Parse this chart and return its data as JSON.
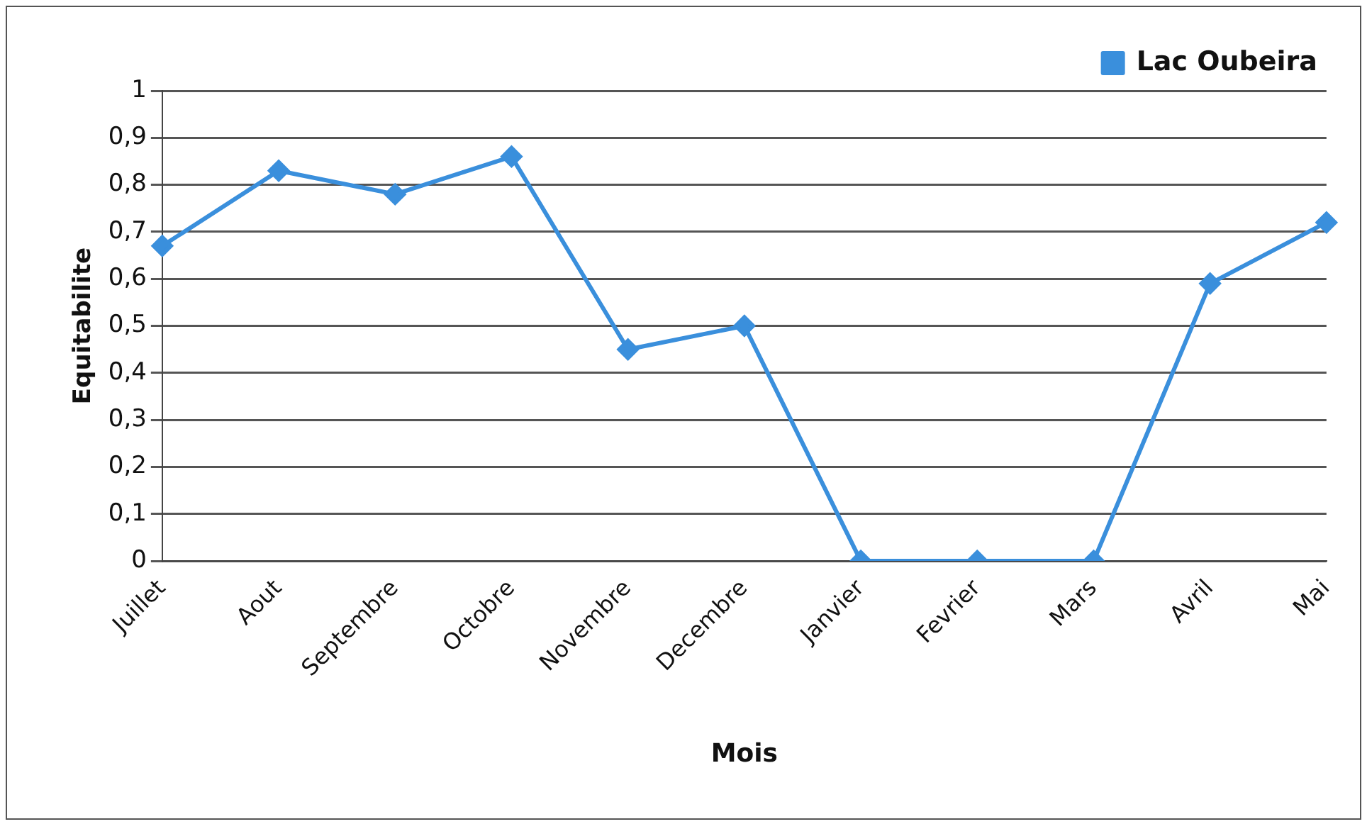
{
  "chart_data": {
    "type": "line",
    "xlabel": "Mois",
    "ylabel": "Equitabilite",
    "categories": [
      "Juillet",
      "Aout",
      "Septembre",
      "Octobre",
      "Novembre",
      "Decembre",
      "Janvier",
      "Fevrier",
      "Mars",
      "Avril",
      "Mai"
    ],
    "series": [
      {
        "name": "Lac Oubeira",
        "color": "#3a8fdc",
        "values": [
          0.67,
          0.83,
          0.78,
          0.86,
          0.45,
          0.5,
          0,
          0,
          0,
          0.59,
          0.72
        ]
      }
    ],
    "ylim": [
      0,
      1
    ],
    "yticks": [
      0,
      {
        "value": 0.1,
        "label": "0,1"
      },
      {
        "value": 0.2,
        "label": "0,2"
      },
      {
        "value": 0.3,
        "label": "0,3"
      },
      {
        "value": 0.4,
        "label": "0,4"
      },
      {
        "value": 0.5,
        "label": "0,5"
      },
      {
        "value": 0.6,
        "label": "0,6"
      },
      {
        "value": 0.7,
        "label": "0,7"
      },
      {
        "value": 0.8,
        "label": "0,8"
      },
      {
        "value": 0.9,
        "label": "0,9"
      },
      1
    ],
    "grid": "y",
    "legend": "top right",
    "marker": "diamond",
    "line_style": "solid"
  }
}
